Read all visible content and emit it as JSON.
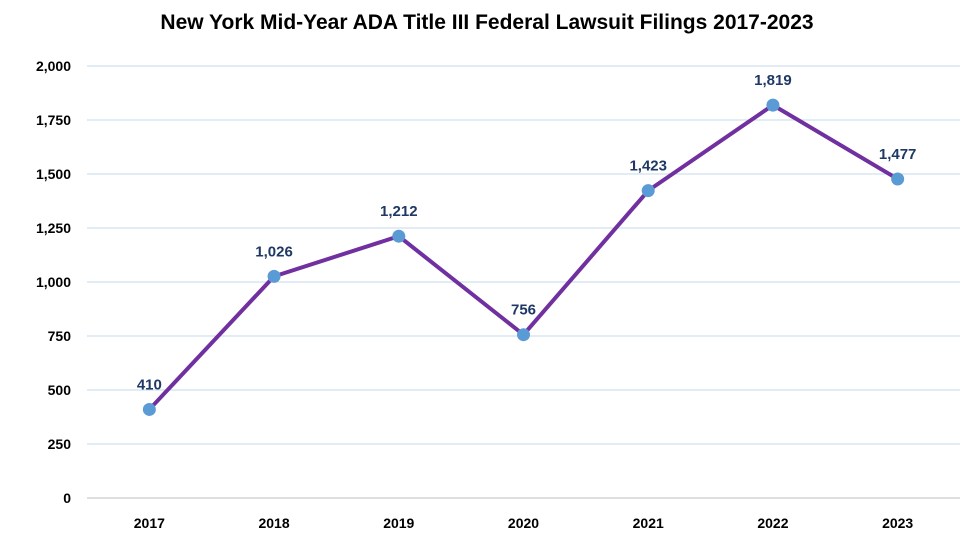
{
  "chart_data": {
    "type": "line",
    "title": "New York Mid-Year ADA Title III Federal Lawsuit Filings 2017-2023",
    "xlabel": "",
    "ylabel": "",
    "categories": [
      "2017",
      "2018",
      "2019",
      "2020",
      "2021",
      "2022",
      "2023"
    ],
    "series": [
      {
        "values": [
          410,
          1026,
          1212,
          756,
          1423,
          1819,
          1477
        ],
        "data_labels": [
          "410",
          "1,026",
          "1,212",
          "756",
          "1,423",
          "1,819",
          "1,477"
        ]
      }
    ],
    "ylim": [
      0,
      2000
    ],
    "y_ticks": [
      0,
      250,
      500,
      750,
      1000,
      1250,
      1500,
      1750,
      2000
    ],
    "y_tick_labels": [
      "0",
      "250",
      "500",
      "750",
      "1,000",
      "1,250",
      "1,500",
      "1,750",
      "2,000"
    ],
    "grid": true,
    "legend": "none",
    "colors": {
      "line": "#7030A0",
      "marker": "#5B9BD5",
      "data_label": "#1F3864",
      "grid": "#C5D9EA",
      "axis": "#BFBFBF"
    }
  }
}
